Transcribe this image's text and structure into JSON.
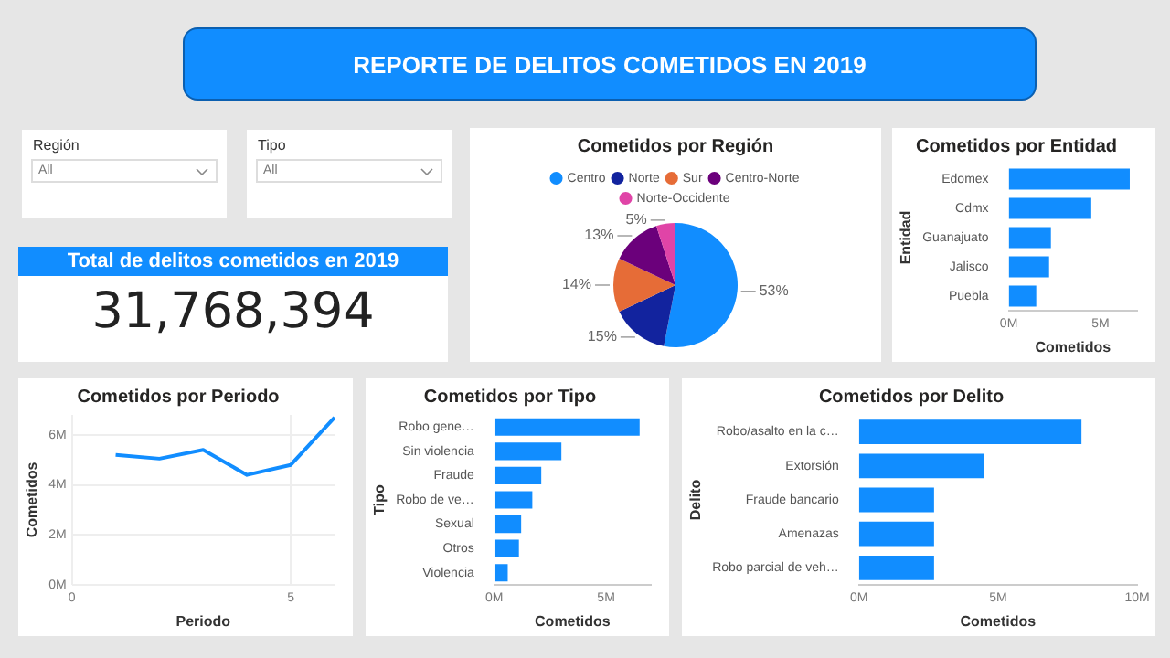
{
  "chart_data": [
    {
      "type": "other",
      "title": "REPORTE DE DELITOS COMETIDOS EN 2019",
      "annotations": [
        "Región",
        "All",
        "Tipo",
        "All"
      ]
    },
    {
      "type": "other",
      "title": "Total de delitos cometidos en 2019",
      "annotations": [
        "31,768,394"
      ]
    },
    {
      "type": "pie",
      "title": "Cometidos por Región",
      "categories": [
        "Centro",
        "Norte",
        "Sur",
        "Centro-Norte",
        "Norte-Occidente"
      ],
      "values": [
        53,
        15,
        14,
        13,
        5
      ],
      "colors": [
        "#118dff",
        "#12239e",
        "#e66c37",
        "#6b007b",
        "#e044a7"
      ],
      "value_labels": [
        "53%",
        "15%",
        "14%",
        "13%",
        "5%"
      ],
      "legend": "top"
    },
    {
      "type": "bar",
      "orientation": "horizontal",
      "title": "Cometidos por Entidad",
      "xlabel": "Cometidos",
      "ylabel": "Entidad",
      "categories": [
        "Edomex",
        "Cdmx",
        "Guanajuato",
        "Jalisco",
        "Puebla"
      ],
      "values": [
        6.6,
        4.5,
        2.3,
        2.2,
        1.5
      ],
      "color": "#118dff",
      "xlim": [
        0,
        7
      ],
      "xticks": [
        {
          "value": 0,
          "label": "0M"
        },
        {
          "value": 5,
          "label": "5M"
        }
      ]
    },
    {
      "type": "line",
      "title": "Cometidos por Periodo",
      "xlabel": "Periodo",
      "ylabel": "Cometidos",
      "x": [
        1,
        2,
        3,
        4,
        5,
        6
      ],
      "values": [
        5.2,
        5.05,
        5.4,
        4.4,
        4.8,
        6.7
      ],
      "color": "#118dff",
      "xlim": [
        0,
        6
      ],
      "xticks": [
        0,
        5
      ],
      "ylim": [
        0,
        6.8
      ],
      "yticks": [
        {
          "value": 0,
          "label": "0M"
        },
        {
          "value": 2,
          "label": "2M"
        },
        {
          "value": 4,
          "label": "4M"
        },
        {
          "value": 6,
          "label": "6M"
        }
      ],
      "grid": true,
      "marker": "none"
    },
    {
      "type": "bar",
      "orientation": "horizontal",
      "title": "Cometidos por Tipo",
      "xlabel": "Cometidos",
      "ylabel": "Tipo",
      "categories": [
        "Robo gene…",
        "Sin violencia",
        "Fraude",
        "Robo de ve…",
        "Sexual",
        "Otros",
        "Violencia"
      ],
      "values": [
        6.5,
        3.0,
        2.1,
        1.7,
        1.2,
        1.1,
        0.6
      ],
      "color": "#118dff",
      "xlim": [
        0,
        7
      ],
      "xticks": [
        {
          "value": 0,
          "label": "0M"
        },
        {
          "value": 5,
          "label": "5M"
        }
      ]
    },
    {
      "type": "bar",
      "orientation": "horizontal",
      "title": "Cometidos por Delito",
      "xlabel": "Cometidos",
      "ylabel": "Delito",
      "categories": [
        "Robo/asalto en la c…",
        "Extorsión",
        "Fraude bancario",
        "Amenazas",
        "Robo parcial de veh…"
      ],
      "values": [
        8.0,
        4.5,
        2.7,
        2.7,
        2.7
      ],
      "color": "#118dff",
      "xlim": [
        0,
        10
      ],
      "xticks": [
        {
          "value": 0,
          "label": "0M"
        },
        {
          "value": 5,
          "label": "5M"
        },
        {
          "value": 10,
          "label": "10M"
        }
      ]
    }
  ]
}
